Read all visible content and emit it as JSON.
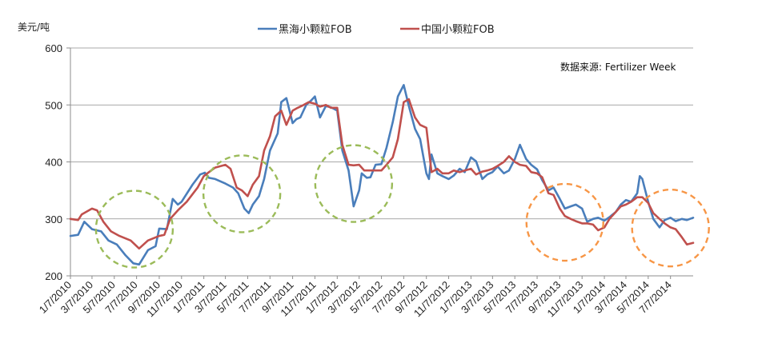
{
  "chart_data": {
    "type": "line",
    "ylabel": "美元/吨",
    "source_note": "数据来源: Fertilizer Week",
    "ylim": [
      200,
      600
    ],
    "yticks": [
      200,
      300,
      400,
      500,
      600
    ],
    "grid": "horizontal",
    "legend_position": "top-center",
    "x_tick_labels": [
      "1/7/2010",
      "3/7/2010",
      "5/7/2010",
      "7/7/2010",
      "9/7/2010",
      "11/7/2010",
      "1/7/2011",
      "3/7/2011",
      "5/7/2011",
      "7/7/2011",
      "9/7/2011",
      "11/7/2011",
      "1/7/2012",
      "3/7/2012",
      "5/7/2012",
      "7/7/2012",
      "9/7/2012",
      "11/7/2012",
      "1/7/2013",
      "3/7/2013",
      "5/7/2013",
      "7/7/2013",
      "9/7/2013",
      "11/7/2013",
      "1/7/2014",
      "3/7/2014",
      "5/7/2014",
      "7/7/2014"
    ],
    "series": [
      {
        "name": "黑海小颗粒FOB",
        "color": "#4a7ebb",
        "points": [
          [
            "2010-01-07",
            270
          ],
          [
            "2010-01-28",
            272
          ],
          [
            "2010-02-14",
            295
          ],
          [
            "2010-03-07",
            282
          ],
          [
            "2010-04-01",
            278
          ],
          [
            "2010-04-21",
            262
          ],
          [
            "2010-05-14",
            255
          ],
          [
            "2010-06-07",
            236
          ],
          [
            "2010-06-28",
            222
          ],
          [
            "2010-07-14",
            220
          ],
          [
            "2010-08-07",
            245
          ],
          [
            "2010-08-28",
            252
          ],
          [
            "2010-09-07",
            283
          ],
          [
            "2010-09-28",
            282
          ],
          [
            "2010-10-14",
            335
          ],
          [
            "2010-10-28",
            325
          ],
          [
            "2010-11-07",
            330
          ],
          [
            "2010-12-07",
            360
          ],
          [
            "2010-12-28",
            378
          ],
          [
            "2011-01-10",
            381
          ],
          [
            "2011-01-21",
            372
          ],
          [
            "2011-02-07",
            370
          ],
          [
            "2011-03-07",
            362
          ],
          [
            "2011-03-28",
            355
          ],
          [
            "2011-04-11",
            345
          ],
          [
            "2011-04-28",
            318
          ],
          [
            "2011-05-10",
            310
          ],
          [
            "2011-05-21",
            325
          ],
          [
            "2011-06-07",
            340
          ],
          [
            "2011-06-21",
            370
          ],
          [
            "2011-07-07",
            420
          ],
          [
            "2011-07-28",
            450
          ],
          [
            "2011-08-07",
            505
          ],
          [
            "2011-08-21",
            512
          ],
          [
            "2011-09-07",
            468
          ],
          [
            "2011-09-17",
            475
          ],
          [
            "2011-09-28",
            478
          ],
          [
            "2011-10-14",
            500
          ],
          [
            "2011-10-28",
            508
          ],
          [
            "2011-11-07",
            515
          ],
          [
            "2011-11-21",
            478
          ],
          [
            "2011-12-07",
            498
          ],
          [
            "2011-12-21",
            496
          ],
          [
            "2012-01-07",
            490
          ],
          [
            "2012-01-21",
            420
          ],
          [
            "2012-02-07",
            385
          ],
          [
            "2012-02-21",
            322
          ],
          [
            "2012-03-07",
            350
          ],
          [
            "2012-03-14",
            380
          ],
          [
            "2012-03-28",
            372
          ],
          [
            "2012-04-07",
            373
          ],
          [
            "2012-04-21",
            395
          ],
          [
            "2012-05-07",
            396
          ],
          [
            "2012-05-21",
            425
          ],
          [
            "2012-06-07",
            470
          ],
          [
            "2012-06-21",
            515
          ],
          [
            "2012-07-07",
            535
          ],
          [
            "2012-07-21",
            498
          ],
          [
            "2012-08-07",
            458
          ],
          [
            "2012-08-21",
            440
          ],
          [
            "2012-09-07",
            380
          ],
          [
            "2012-09-14",
            370
          ],
          [
            "2012-09-21",
            413
          ],
          [
            "2012-10-07",
            380
          ],
          [
            "2012-10-21",
            375
          ],
          [
            "2012-11-07",
            370
          ],
          [
            "2012-11-21",
            376
          ],
          [
            "2012-12-07",
            388
          ],
          [
            "2012-12-21",
            382
          ],
          [
            "2013-01-07",
            408
          ],
          [
            "2013-01-21",
            401
          ],
          [
            "2013-02-07",
            370
          ],
          [
            "2013-02-21",
            378
          ],
          [
            "2013-03-07",
            382
          ],
          [
            "2013-03-21",
            392
          ],
          [
            "2013-04-07",
            380
          ],
          [
            "2013-04-21",
            385
          ],
          [
            "2013-05-07",
            405
          ],
          [
            "2013-05-21",
            430
          ],
          [
            "2013-06-07",
            405
          ],
          [
            "2013-06-21",
            395
          ],
          [
            "2013-07-07",
            387
          ],
          [
            "2013-07-21",
            368
          ],
          [
            "2013-08-07",
            350
          ],
          [
            "2013-08-21",
            355
          ],
          [
            "2013-09-07",
            335
          ],
          [
            "2013-09-21",
            318
          ],
          [
            "2013-10-07",
            322
          ],
          [
            "2013-10-21",
            325
          ],
          [
            "2013-11-07",
            318
          ],
          [
            "2013-11-21",
            295
          ],
          [
            "2013-12-07",
            300
          ],
          [
            "2013-12-21",
            302
          ],
          [
            "2014-01-07",
            297
          ],
          [
            "2014-01-21",
            303
          ],
          [
            "2014-02-07",
            312
          ],
          [
            "2014-02-21",
            325
          ],
          [
            "2014-03-07",
            333
          ],
          [
            "2014-03-21",
            330
          ],
          [
            "2014-04-07",
            345
          ],
          [
            "2014-04-14",
            375
          ],
          [
            "2014-04-21",
            370
          ],
          [
            "2014-05-07",
            330
          ],
          [
            "2014-05-21",
            300
          ],
          [
            "2014-06-07",
            285
          ],
          [
            "2014-06-21",
            298
          ],
          [
            "2014-07-07",
            302
          ],
          [
            "2014-07-21",
            296
          ],
          [
            "2014-08-07",
            300
          ],
          [
            "2014-08-21",
            298
          ],
          [
            "2014-09-07",
            302
          ]
        ]
      },
      {
        "name": "中国小颗粒FOB",
        "color": "#c0504d",
        "points": [
          [
            "2010-01-07",
            300
          ],
          [
            "2010-01-28",
            298
          ],
          [
            "2010-02-07",
            308
          ],
          [
            "2010-03-07",
            318
          ],
          [
            "2010-03-21",
            315
          ],
          [
            "2010-04-07",
            295
          ],
          [
            "2010-04-28",
            278
          ],
          [
            "2010-05-21",
            270
          ],
          [
            "2010-06-21",
            262
          ],
          [
            "2010-07-14",
            248
          ],
          [
            "2010-08-07",
            262
          ],
          [
            "2010-09-07",
            270
          ],
          [
            "2010-09-21",
            272
          ],
          [
            "2010-10-07",
            300
          ],
          [
            "2010-10-28",
            315
          ],
          [
            "2010-11-21",
            330
          ],
          [
            "2010-12-21",
            355
          ],
          [
            "2011-01-07",
            375
          ],
          [
            "2011-01-21",
            382
          ],
          [
            "2011-02-07",
            390
          ],
          [
            "2011-03-07",
            395
          ],
          [
            "2011-03-21",
            388
          ],
          [
            "2011-04-07",
            355
          ],
          [
            "2011-04-21",
            350
          ],
          [
            "2011-05-07",
            340
          ],
          [
            "2011-05-21",
            360
          ],
          [
            "2011-06-07",
            375
          ],
          [
            "2011-06-21",
            420
          ],
          [
            "2011-07-07",
            445
          ],
          [
            "2011-07-21",
            480
          ],
          [
            "2011-08-07",
            490
          ],
          [
            "2011-08-21",
            465
          ],
          [
            "2011-09-07",
            490
          ],
          [
            "2011-09-21",
            495
          ],
          [
            "2011-10-07",
            500
          ],
          [
            "2011-10-21",
            505
          ],
          [
            "2011-11-07",
            502
          ],
          [
            "2011-11-21",
            497
          ],
          [
            "2011-12-07",
            500
          ],
          [
            "2011-12-21",
            495
          ],
          [
            "2012-01-07",
            495
          ],
          [
            "2012-01-21",
            430
          ],
          [
            "2012-02-07",
            395
          ],
          [
            "2012-02-21",
            394
          ],
          [
            "2012-03-07",
            395
          ],
          [
            "2012-03-21",
            385
          ],
          [
            "2012-04-21",
            385
          ],
          [
            "2012-05-07",
            385
          ],
          [
            "2012-05-21",
            395
          ],
          [
            "2012-06-07",
            408
          ],
          [
            "2012-06-21",
            440
          ],
          [
            "2012-07-07",
            505
          ],
          [
            "2012-07-21",
            510
          ],
          [
            "2012-08-07",
            478
          ],
          [
            "2012-08-21",
            465
          ],
          [
            "2012-09-07",
            460
          ],
          [
            "2012-09-21",
            382
          ],
          [
            "2012-10-07",
            388
          ],
          [
            "2012-10-21",
            380
          ],
          [
            "2012-11-07",
            380
          ],
          [
            "2012-11-21",
            385
          ],
          [
            "2012-12-07",
            382
          ],
          [
            "2012-12-21",
            385
          ],
          [
            "2013-01-07",
            388
          ],
          [
            "2013-01-21",
            378
          ],
          [
            "2013-02-07",
            383
          ],
          [
            "2013-02-21",
            385
          ],
          [
            "2013-03-07",
            388
          ],
          [
            "2013-03-21",
            393
          ],
          [
            "2013-04-07",
            400
          ],
          [
            "2013-04-21",
            410
          ],
          [
            "2013-05-07",
            400
          ],
          [
            "2013-05-21",
            395
          ],
          [
            "2013-06-07",
            393
          ],
          [
            "2013-06-21",
            382
          ],
          [
            "2013-07-07",
            380
          ],
          [
            "2013-07-21",
            373
          ],
          [
            "2013-08-07",
            345
          ],
          [
            "2013-08-21",
            342
          ],
          [
            "2013-09-07",
            318
          ],
          [
            "2013-09-21",
            305
          ],
          [
            "2013-10-07",
            300
          ],
          [
            "2013-10-21",
            296
          ],
          [
            "2013-11-07",
            292
          ],
          [
            "2013-11-21",
            292
          ],
          [
            "2013-12-07",
            290
          ],
          [
            "2013-12-21",
            280
          ],
          [
            "2014-01-07",
            285
          ],
          [
            "2014-01-21",
            300
          ],
          [
            "2014-02-07",
            312
          ],
          [
            "2014-02-21",
            322
          ],
          [
            "2014-03-07",
            325
          ],
          [
            "2014-03-21",
            330
          ],
          [
            "2014-04-07",
            338
          ],
          [
            "2014-04-21",
            338
          ],
          [
            "2014-05-07",
            328
          ],
          [
            "2014-05-21",
            310
          ],
          [
            "2014-06-07",
            300
          ],
          [
            "2014-06-21",
            292
          ],
          [
            "2014-07-07",
            285
          ],
          [
            "2014-07-21",
            282
          ],
          [
            "2014-08-07",
            268
          ],
          [
            "2014-08-21",
            255
          ],
          [
            "2014-09-07",
            258
          ]
        ]
      }
    ],
    "annotations": [
      {
        "shape": "circle",
        "style": "dashed",
        "color": "#9bbb59",
        "center": [
          "2010-07-01",
          282
        ],
        "note": "low"
      },
      {
        "shape": "circle",
        "style": "dashed",
        "color": "#9bbb59",
        "center": [
          "2011-04-21",
          344
        ],
        "note": "dip"
      },
      {
        "shape": "circle",
        "style": "dashed",
        "color": "#9bbb59",
        "center": [
          "2012-02-21",
          362
        ],
        "note": "dip"
      },
      {
        "shape": "circle",
        "style": "dashed",
        "color": "#f79646",
        "center": [
          "2013-09-21",
          294
        ],
        "note": "low"
      },
      {
        "shape": "circle",
        "style": "dashed",
        "color": "#f79646",
        "center": [
          "2014-07-07",
          284
        ],
        "note": "low"
      }
    ]
  }
}
